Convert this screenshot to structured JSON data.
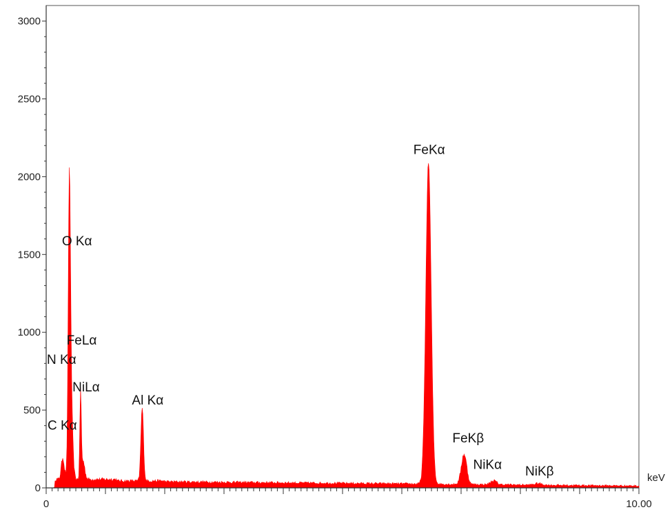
{
  "chart_data": {
    "type": "area",
    "title": "",
    "xlabel": "",
    "ylabel": "",
    "x_unit": "keV",
    "xlim": [
      0,
      10
    ],
    "ylim": [
      0,
      3100
    ],
    "y_ticks": [
      0,
      500,
      1000,
      1500,
      2000,
      2500,
      3000
    ],
    "x_tick_labels": [
      {
        "x": 0,
        "label": "0"
      },
      {
        "x": 10,
        "label": "10.00"
      }
    ],
    "x_minor_tick_step": 0.1,
    "x_major_tick_step": 1.0,
    "grid": false,
    "series_color": "#ff0000",
    "peaks": [
      {
        "label": "C Kα",
        "energy": 0.28,
        "counts": 175
      },
      {
        "label": "N Kα",
        "energy": 0.39,
        "counts": 820
      },
      {
        "label": "O Kα",
        "energy": 0.38,
        "counts": 1550
      },
      {
        "label": "FeLα",
        "energy": 0.39,
        "counts": 930
      },
      {
        "label": "NiLα",
        "energy": 0.58,
        "counts": 580
      },
      {
        "label": "Al Kα",
        "energy": 1.62,
        "counts": 510
      },
      {
        "label": "FeKα",
        "energy": 6.45,
        "counts": 2110
      },
      {
        "label": "FeKβ",
        "energy": 7.05,
        "counts": 230
      },
      {
        "label": "NiKα",
        "energy": 7.55,
        "counts": 55
      },
      {
        "label": "NiKβ",
        "energy": 8.3,
        "counts": 35
      }
    ],
    "background_counts": 40
  }
}
